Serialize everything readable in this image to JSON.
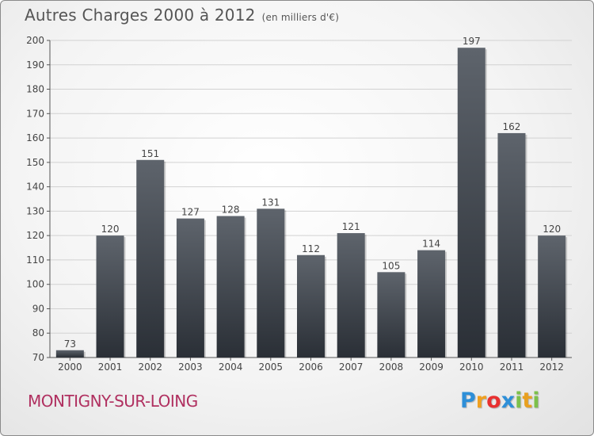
{
  "header": {
    "title": "Autres Charges 2000 à 2012",
    "subtitle": "(en milliers d'€)"
  },
  "footer": {
    "location": "MONTIGNY-SUR-LOING",
    "brand_letters": [
      "P",
      "r",
      "o",
      "x",
      "i",
      "t",
      "i"
    ],
    "brand_colors": [
      "#2e8fd8",
      "#f0a020",
      "#e83030",
      "#2e8fd8",
      "#7cc04a",
      "#e8a020",
      "#7cc04a"
    ]
  },
  "chart_data": {
    "type": "bar",
    "title": "Autres Charges 2000 à 2012",
    "subtitle": "(en milliers d'€)",
    "xlabel": "",
    "ylabel": "",
    "categories": [
      "2000",
      "2001",
      "2002",
      "2003",
      "2004",
      "2005",
      "2006",
      "2007",
      "2008",
      "2009",
      "2010",
      "2011",
      "2012"
    ],
    "values": [
      73,
      120,
      151,
      127,
      128,
      131,
      112,
      121,
      105,
      114,
      197,
      162,
      120
    ],
    "ylim": [
      70,
      200
    ],
    "yticks": [
      70,
      80,
      90,
      100,
      110,
      120,
      130,
      140,
      150,
      160,
      170,
      180,
      190,
      200
    ],
    "grid": true,
    "data_labels": true,
    "bar_color": "#4a5058"
  }
}
